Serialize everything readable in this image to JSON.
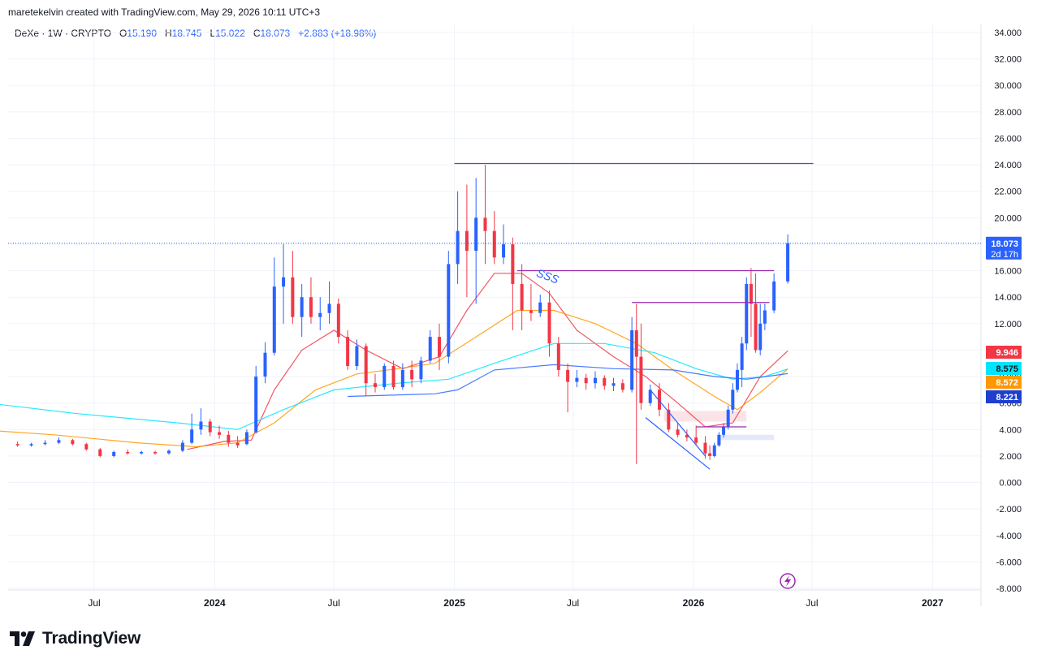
{
  "header": {
    "attribution": "maretekelvin created with TradingView.com, May 29, 2026 10:11 UTC+3"
  },
  "legend": {
    "symbol": "DeXe · 1W · CRYPTO",
    "open_label": "O",
    "open": "15.190",
    "high_label": "H",
    "high": "18.745",
    "low_label": "L",
    "low": "15.022",
    "close_label": "C",
    "close": "18.073",
    "change": "+2.883 (+18.98%)"
  },
  "brand": {
    "name": "TradingView",
    "icon": "tradingview-logo-icon"
  },
  "colors": {
    "up": "#2962ff",
    "down": "#f23645",
    "grid": "#f0f3fa",
    "resistance": "#9c27b0",
    "wedge": "#2962ff",
    "ma_red": "#f23645",
    "ma_cyan": "#00e5ff",
    "ma_orange": "#ff9800",
    "ma_blue": "#2962ff"
  },
  "chart_data": {
    "type": "candlestick",
    "ylim": [
      -8,
      34
    ],
    "y_ticks": [
      "34.000",
      "32.000",
      "30.000",
      "28.000",
      "26.000",
      "24.000",
      "22.000",
      "20.000",
      "18.000",
      "16.000",
      "14.000",
      "12.000",
      "10.000",
      "8.000",
      "6.000",
      "4.000",
      "2.000",
      "0.000",
      "-2.000",
      "-4.000",
      "-6.000",
      "-8.000"
    ],
    "x_ticks": [
      {
        "label": "Jul",
        "date": "2023-07-01"
      },
      {
        "label": "2024",
        "date": "2024-01-01"
      },
      {
        "label": "Jul",
        "date": "2024-07-01"
      },
      {
        "label": "2025",
        "date": "2025-01-01"
      },
      {
        "label": "Jul",
        "date": "2025-07-01"
      },
      {
        "label": "2026",
        "date": "2026-01-01"
      },
      {
        "label": "Jul",
        "date": "2026-07-01"
      },
      {
        "label": "2027",
        "date": "2027-01-01"
      }
    ],
    "candles": [
      {
        "date": "2023-03-06",
        "o": 2.9,
        "h": 3.1,
        "c": 2.8,
        "l": 2.7
      },
      {
        "date": "2023-03-27",
        "o": 2.8,
        "h": 3.0,
        "c": 2.9,
        "l": 2.7
      },
      {
        "date": "2023-04-17",
        "o": 2.9,
        "h": 3.2,
        "c": 3.0,
        "l": 2.8
      },
      {
        "date": "2023-05-08",
        "o": 3.0,
        "h": 3.4,
        "c": 3.2,
        "l": 2.9
      },
      {
        "date": "2023-05-29",
        "o": 3.2,
        "h": 3.3,
        "c": 2.9,
        "l": 2.8
      },
      {
        "date": "2023-06-19",
        "o": 2.9,
        "h": 3.0,
        "c": 2.5,
        "l": 2.4
      },
      {
        "date": "2023-07-10",
        "o": 2.5,
        "h": 2.6,
        "c": 2.0,
        "l": 1.9
      },
      {
        "date": "2023-07-31",
        "o": 2.0,
        "h": 2.4,
        "c": 2.3,
        "l": 1.9
      },
      {
        "date": "2023-08-21",
        "o": 2.3,
        "h": 2.5,
        "c": 2.2,
        "l": 2.1
      },
      {
        "date": "2023-09-11",
        "o": 2.2,
        "h": 2.4,
        "c": 2.3,
        "l": 2.1
      },
      {
        "date": "2023-10-02",
        "o": 2.3,
        "h": 2.4,
        "c": 2.2,
        "l": 2.1
      },
      {
        "date": "2023-10-23",
        "o": 2.2,
        "h": 2.5,
        "c": 2.4,
        "l": 2.1
      },
      {
        "date": "2023-11-13",
        "o": 2.4,
        "h": 3.2,
        "c": 3.0,
        "l": 2.3
      },
      {
        "date": "2023-11-27",
        "o": 3.0,
        "h": 5.2,
        "c": 4.0,
        "l": 2.9
      },
      {
        "date": "2023-12-11",
        "o": 4.0,
        "h": 5.6,
        "c": 4.6,
        "l": 3.6
      },
      {
        "date": "2023-12-25",
        "o": 4.6,
        "h": 4.8,
        "c": 3.8,
        "l": 3.5
      },
      {
        "date": "2024-01-08",
        "o": 3.8,
        "h": 4.3,
        "c": 3.6,
        "l": 3.3
      },
      {
        "date": "2024-01-22",
        "o": 3.6,
        "h": 3.9,
        "c": 3.0,
        "l": 2.7
      },
      {
        "date": "2024-02-05",
        "o": 3.0,
        "h": 3.5,
        "c": 2.8,
        "l": 2.6
      },
      {
        "date": "2024-02-19",
        "o": 2.9,
        "h": 4.0,
        "c": 3.8,
        "l": 2.8
      },
      {
        "date": "2024-03-04",
        "o": 3.8,
        "h": 8.8,
        "c": 8.0,
        "l": 3.7
      },
      {
        "date": "2024-03-18",
        "o": 8.0,
        "h": 10.6,
        "c": 9.8,
        "l": 7.5
      },
      {
        "date": "2024-04-01",
        "o": 9.8,
        "h": 17.0,
        "c": 14.8,
        "l": 9.6
      },
      {
        "date": "2024-04-15",
        "o": 14.8,
        "h": 18.0,
        "c": 15.5,
        "l": 12.0
      },
      {
        "date": "2024-04-29",
        "o": 15.5,
        "h": 17.5,
        "c": 12.5,
        "l": 12.0
      },
      {
        "date": "2024-05-13",
        "o": 12.5,
        "h": 15.0,
        "c": 14.0,
        "l": 11.0
      },
      {
        "date": "2024-05-27",
        "o": 14.0,
        "h": 15.5,
        "c": 12.5,
        "l": 12.0
      },
      {
        "date": "2024-06-10",
        "o": 12.5,
        "h": 14.0,
        "c": 12.8,
        "l": 11.5
      },
      {
        "date": "2024-06-24",
        "o": 12.8,
        "h": 15.2,
        "c": 13.5,
        "l": 12.0
      },
      {
        "date": "2024-07-08",
        "o": 13.5,
        "h": 13.9,
        "c": 11.0,
        "l": 10.5
      },
      {
        "date": "2024-07-22",
        "o": 11.0,
        "h": 11.5,
        "c": 8.8,
        "l": 8.5
      },
      {
        "date": "2024-08-05",
        "o": 8.8,
        "h": 10.8,
        "c": 10.3,
        "l": 8.5
      },
      {
        "date": "2024-08-19",
        "o": 10.3,
        "h": 10.5,
        "c": 7.5,
        "l": 6.5
      },
      {
        "date": "2024-09-02",
        "o": 7.5,
        "h": 8.2,
        "c": 7.2,
        "l": 6.8
      },
      {
        "date": "2024-09-16",
        "o": 7.2,
        "h": 9.0,
        "c": 8.8,
        "l": 7.0
      },
      {
        "date": "2024-09-30",
        "o": 8.8,
        "h": 9.2,
        "c": 7.2,
        "l": 7.0
      },
      {
        "date": "2024-10-14",
        "o": 7.2,
        "h": 9.0,
        "c": 8.5,
        "l": 7.0
      },
      {
        "date": "2024-10-28",
        "o": 8.5,
        "h": 9.2,
        "c": 7.8,
        "l": 7.2
      },
      {
        "date": "2024-11-11",
        "o": 7.8,
        "h": 9.5,
        "c": 9.2,
        "l": 7.5
      },
      {
        "date": "2024-11-25",
        "o": 9.2,
        "h": 11.5,
        "c": 11.0,
        "l": 9.0
      },
      {
        "date": "2024-12-09",
        "o": 11.0,
        "h": 12.0,
        "c": 9.5,
        "l": 8.5
      },
      {
        "date": "2024-12-23",
        "o": 9.5,
        "h": 17.5,
        "c": 16.5,
        "l": 9.0
      },
      {
        "date": "2025-01-06",
        "o": 16.5,
        "h": 22.0,
        "c": 19.0,
        "l": 15.0
      },
      {
        "date": "2025-01-20",
        "o": 19.0,
        "h": 22.5,
        "c": 17.5,
        "l": 14.0
      },
      {
        "date": "2025-02-03",
        "o": 17.5,
        "h": 23.0,
        "c": 20.0,
        "l": 13.5
      },
      {
        "date": "2025-02-17",
        "o": 20.0,
        "h": 24.0,
        "c": 19.0,
        "l": 16.5
      },
      {
        "date": "2025-03-03",
        "o": 19.0,
        "h": 20.5,
        "c": 17.0,
        "l": 16.5
      },
      {
        "date": "2025-03-17",
        "o": 17.0,
        "h": 19.5,
        "c": 18.0,
        "l": 16.5
      },
      {
        "date": "2025-03-31",
        "o": 18.0,
        "h": 18.5,
        "c": 15.0,
        "l": 11.5
      },
      {
        "date": "2025-04-14",
        "o": 15.0,
        "h": 16.5,
        "c": 13.0,
        "l": 11.5
      },
      {
        "date": "2025-04-28",
        "o": 13.0,
        "h": 15.0,
        "c": 12.8,
        "l": 12.2
      },
      {
        "date": "2025-05-12",
        "o": 12.8,
        "h": 14.2,
        "c": 13.6,
        "l": 12.5
      },
      {
        "date": "2025-05-26",
        "o": 13.6,
        "h": 14.5,
        "c": 10.5,
        "l": 9.5
      },
      {
        "date": "2025-06-09",
        "o": 10.5,
        "h": 11.0,
        "c": 8.5,
        "l": 8.0
      },
      {
        "date": "2025-06-23",
        "o": 8.5,
        "h": 9.0,
        "c": 7.6,
        "l": 5.3
      },
      {
        "date": "2025-07-07",
        "o": 7.6,
        "h": 8.5,
        "c": 7.9,
        "l": 7.2
      },
      {
        "date": "2025-07-21",
        "o": 7.9,
        "h": 8.2,
        "c": 7.5,
        "l": 7.0
      },
      {
        "date": "2025-08-04",
        "o": 7.5,
        "h": 8.4,
        "c": 7.9,
        "l": 7.1
      },
      {
        "date": "2025-08-18",
        "o": 7.9,
        "h": 8.1,
        "c": 7.3,
        "l": 7.0
      },
      {
        "date": "2025-09-01",
        "o": 7.3,
        "h": 7.9,
        "c": 7.5,
        "l": 6.9
      },
      {
        "date": "2025-09-15",
        "o": 7.5,
        "h": 7.8,
        "c": 7.0,
        "l": 6.8
      },
      {
        "date": "2025-09-29",
        "o": 7.0,
        "h": 12.5,
        "c": 11.5,
        "l": 6.8
      },
      {
        "date": "2025-10-06",
        "o": 11.5,
        "h": 13.5,
        "c": 9.5,
        "l": 1.4
      },
      {
        "date": "2025-10-13",
        "o": 9.5,
        "h": 12.0,
        "c": 6.0,
        "l": 5.5
      },
      {
        "date": "2025-10-27",
        "o": 6.0,
        "h": 7.4,
        "c": 7.0,
        "l": 5.8
      },
      {
        "date": "2025-11-10",
        "o": 7.0,
        "h": 7.5,
        "c": 5.5,
        "l": 5.0
      },
      {
        "date": "2025-11-24",
        "o": 5.5,
        "h": 6.0,
        "c": 4.0,
        "l": 3.8
      },
      {
        "date": "2025-12-08",
        "o": 4.0,
        "h": 4.5,
        "c": 3.6,
        "l": 3.4
      },
      {
        "date": "2025-12-22",
        "o": 3.6,
        "h": 4.0,
        "c": 3.4,
        "l": 3.1
      },
      {
        "date": "2026-01-05",
        "o": 3.4,
        "h": 4.3,
        "c": 3.0,
        "l": 2.8
      },
      {
        "date": "2026-01-19",
        "o": 3.0,
        "h": 3.5,
        "c": 2.2,
        "l": 1.8
      },
      {
        "date": "2026-01-26",
        "o": 2.2,
        "h": 2.8,
        "c": 2.0,
        "l": 1.7
      },
      {
        "date": "2026-02-02",
        "o": 2.0,
        "h": 3.0,
        "c": 2.8,
        "l": 1.9
      },
      {
        "date": "2026-02-09",
        "o": 2.8,
        "h": 3.8,
        "c": 3.6,
        "l": 2.7
      },
      {
        "date": "2026-02-16",
        "o": 3.6,
        "h": 4.5,
        "c": 4.2,
        "l": 3.4
      },
      {
        "date": "2026-02-23",
        "o": 4.2,
        "h": 5.8,
        "c": 5.5,
        "l": 4.0
      },
      {
        "date": "2026-03-02",
        "o": 5.5,
        "h": 7.5,
        "c": 7.0,
        "l": 5.2
      },
      {
        "date": "2026-03-09",
        "o": 7.0,
        "h": 9.0,
        "c": 8.5,
        "l": 6.8
      },
      {
        "date": "2026-03-16",
        "o": 8.5,
        "h": 11.0,
        "c": 10.5,
        "l": 7.2
      },
      {
        "date": "2026-03-23",
        "o": 10.5,
        "h": 15.5,
        "c": 15.0,
        "l": 10.0
      },
      {
        "date": "2026-03-30",
        "o": 15.0,
        "h": 16.2,
        "c": 13.5,
        "l": 11.0
      },
      {
        "date": "2026-04-06",
        "o": 13.5,
        "h": 15.8,
        "c": 10.0,
        "l": 9.8
      },
      {
        "date": "2026-04-13",
        "o": 10.0,
        "h": 13.5,
        "c": 12.0,
        "l": 9.6
      },
      {
        "date": "2026-04-20",
        "o": 12.0,
        "h": 13.5,
        "c": 13.0,
        "l": 11.5
      },
      {
        "date": "2026-05-04",
        "o": 13.0,
        "h": 15.8,
        "c": 15.19,
        "l": 12.8
      },
      {
        "date": "2026-05-25",
        "o": 15.19,
        "h": 18.745,
        "c": 18.073,
        "l": 15.022
      }
    ],
    "moving_averages": [
      {
        "color_key": "ma_red",
        "value_label": "9.946",
        "points": [
          [
            "2023-11-20",
            2.5
          ],
          [
            "2024-01-15",
            3.1
          ],
          [
            "2024-02-26",
            3.2
          ],
          [
            "2024-04-01",
            7.0
          ],
          [
            "2024-05-13",
            10.0
          ],
          [
            "2024-07-01",
            11.5
          ],
          [
            "2024-08-19",
            10.0
          ],
          [
            "2024-10-14",
            8.6
          ],
          [
            "2024-12-09",
            9.5
          ],
          [
            "2025-01-20",
            13.0
          ],
          [
            "2025-03-03",
            15.8
          ],
          [
            "2025-04-14",
            15.8
          ],
          [
            "2025-05-26",
            14.3
          ],
          [
            "2025-07-07",
            11.5
          ],
          [
            "2025-09-01",
            9.5
          ],
          [
            "2025-10-20",
            8.0
          ],
          [
            "2025-12-08",
            6.0
          ],
          [
            "2026-01-19",
            4.2
          ],
          [
            "2026-03-02",
            4.5
          ],
          [
            "2026-04-13",
            8.0
          ],
          [
            "2026-05-25",
            9.946
          ]
        ]
      },
      {
        "color_key": "ma_orange",
        "value_label": "8.572",
        "points": [
          [
            "2023-01-02",
            4.0
          ],
          [
            "2023-05-01",
            3.6
          ],
          [
            "2023-09-04",
            3.0
          ],
          [
            "2023-12-04",
            2.7
          ],
          [
            "2024-02-05",
            3.0
          ],
          [
            "2024-04-01",
            4.5
          ],
          [
            "2024-06-03",
            7.0
          ],
          [
            "2024-08-05",
            8.2
          ],
          [
            "2024-10-07",
            8.6
          ],
          [
            "2024-12-02",
            9.0
          ],
          [
            "2025-02-03",
            11.0
          ],
          [
            "2025-04-07",
            13.0
          ],
          [
            "2025-06-02",
            13.0
          ],
          [
            "2025-08-04",
            12.0
          ],
          [
            "2025-10-06",
            10.5
          ],
          [
            "2025-12-01",
            8.5
          ],
          [
            "2026-02-02",
            6.5
          ],
          [
            "2026-03-09",
            5.5
          ],
          [
            "2026-04-13",
            6.8
          ],
          [
            "2026-05-25",
            8.572
          ]
        ]
      },
      {
        "color_key": "ma_cyan",
        "value_label": "8.575",
        "points": [
          [
            "2023-01-02",
            6.1
          ],
          [
            "2023-06-05",
            5.2
          ],
          [
            "2023-11-06",
            4.5
          ],
          [
            "2024-02-05",
            4.0
          ],
          [
            "2024-04-15",
            5.5
          ],
          [
            "2024-07-01",
            7.0
          ],
          [
            "2024-10-07",
            7.5
          ],
          [
            "2024-12-23",
            7.8
          ],
          [
            "2025-03-03",
            9.0
          ],
          [
            "2025-06-02",
            10.5
          ],
          [
            "2025-08-18",
            10.5
          ],
          [
            "2025-11-03",
            9.8
          ],
          [
            "2026-01-05",
            8.6
          ],
          [
            "2026-03-02",
            7.8
          ],
          [
            "2026-04-20",
            8.0
          ],
          [
            "2026-05-25",
            8.575
          ]
        ]
      },
      {
        "color_key": "ma_blue",
        "value_label": "8.221",
        "points": [
          [
            "2024-07-22",
            6.5
          ],
          [
            "2024-12-02",
            6.7
          ],
          [
            "2025-01-06",
            7.0
          ],
          [
            "2025-03-03",
            8.5
          ],
          [
            "2025-06-02",
            8.9
          ],
          [
            "2025-09-01",
            8.6
          ],
          [
            "2025-12-01",
            8.5
          ],
          [
            "2026-02-02",
            8.0
          ],
          [
            "2026-03-23",
            7.8
          ],
          [
            "2026-05-25",
            8.221
          ]
        ]
      }
    ],
    "last_price": {
      "value": "18.073",
      "countdown": "2d 17h"
    },
    "annotations": [
      {
        "kind": "hline",
        "color_key": "resistance",
        "y": 24.1,
        "x0": "2025-01-01",
        "x1": "2026-07-03"
      },
      {
        "kind": "hline",
        "color_key": "resistance",
        "y": 16.0,
        "x0": "2025-04-07",
        "x1": "2026-05-04"
      },
      {
        "kind": "hline",
        "color_key": "resistance",
        "y": 13.6,
        "x0": "2025-09-29",
        "x1": "2026-04-27"
      },
      {
        "kind": "hline",
        "color_key": "resistance",
        "y": 4.2,
        "x0": "2026-01-05",
        "x1": "2026-03-23"
      },
      {
        "kind": "wedge",
        "color_key": "wedge",
        "upper": [
          [
            "2025-10-27",
            7.0
          ],
          [
            "2026-01-19",
            2.0
          ]
        ],
        "lower": [
          [
            "2025-10-20",
            4.9
          ],
          [
            "2026-01-26",
            1.0
          ]
        ]
      },
      {
        "kind": "zone",
        "fill": "#fbe4e7",
        "y0": 4.6,
        "y1": 5.4,
        "x0": "2025-11-17",
        "x1": "2026-03-23"
      },
      {
        "kind": "zone",
        "fill": "#e3e8fb",
        "y0": 3.2,
        "y1": 3.6,
        "x0": "2026-02-09",
        "x1": "2026-05-04"
      }
    ],
    "sss_label": "SSS"
  }
}
